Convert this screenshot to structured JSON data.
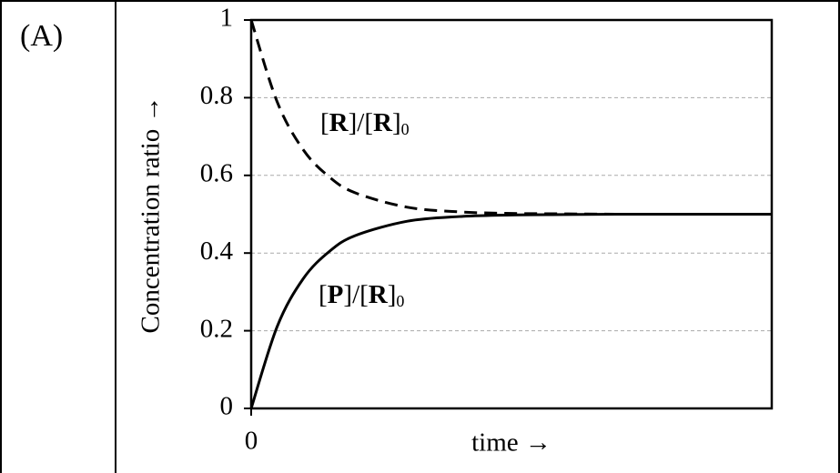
{
  "panel_label": "(A)",
  "chart_data": {
    "type": "line",
    "y_label": "Concentration ratio →",
    "x_label": "time →",
    "x": [
      0,
      0.5,
      1,
      1.5,
      2,
      3,
      4,
      5,
      6,
      7,
      8,
      9,
      10
    ],
    "xlim": [
      0,
      10
    ],
    "xticks": [
      0
    ],
    "ylim": [
      0,
      1
    ],
    "yticks": [
      0,
      0.2,
      0.4,
      0.6,
      0.8,
      1
    ],
    "grid": true,
    "series": [
      {
        "name": "[R]/[R]0",
        "color": "#000000",
        "dashed": true,
        "values": [
          1,
          0.789,
          0.666,
          0.596,
          0.555,
          0.518,
          0.506,
          0.502,
          0.501,
          0.5,
          0.5,
          0.5,
          0.5
        ]
      },
      {
        "name": "[P]/[R]0",
        "color": "#000000",
        "dashed": false,
        "values": [
          0,
          0.211,
          0.334,
          0.404,
          0.445,
          0.482,
          0.494,
          0.498,
          0.499,
          0.5,
          0.5,
          0.5,
          0.5
        ]
      }
    ]
  }
}
